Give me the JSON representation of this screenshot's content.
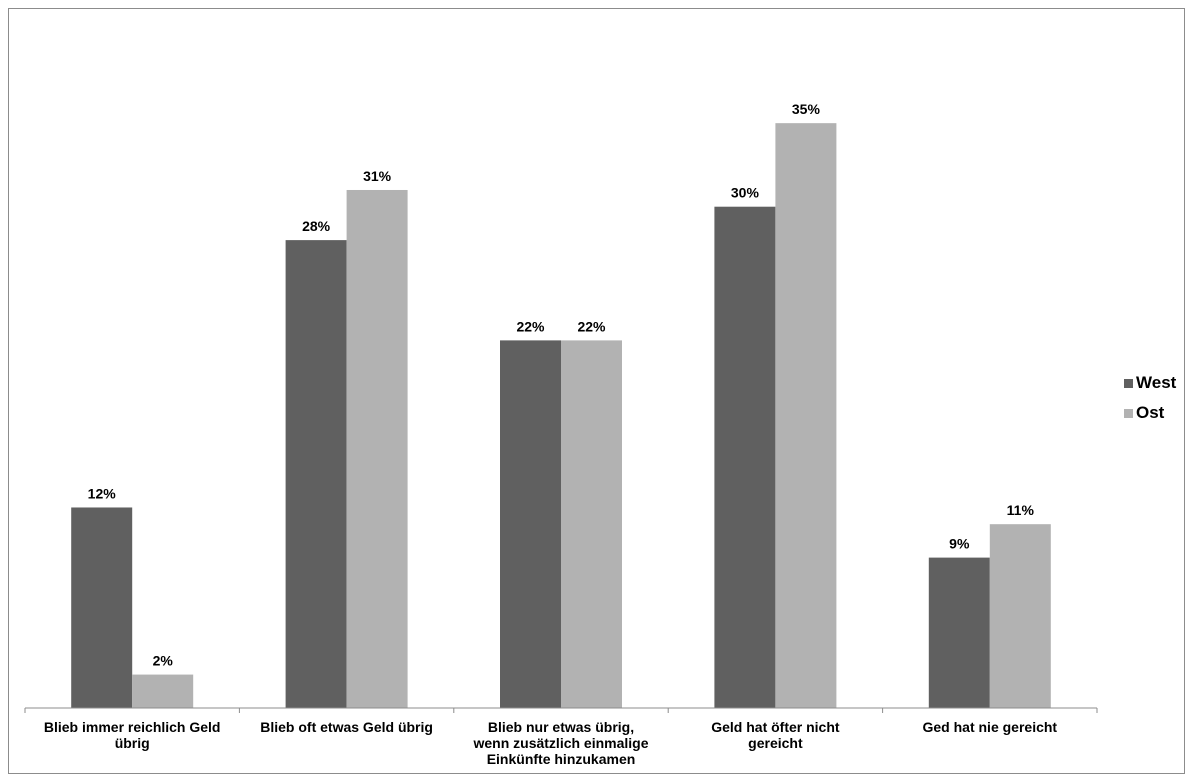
{
  "chart_data": {
    "type": "bar",
    "categories": [
      [
        "Blieb immer reichlich Geld",
        "übrig"
      ],
      [
        "Blieb oft etwas Geld übrig"
      ],
      [
        "Blieb nur etwas übrig,",
        "wenn zusätzlich einmalige",
        "Einkünfte hinzukamen"
      ],
      [
        "Geld hat öfter nicht",
        "gereicht"
      ],
      [
        "Ged hat nie gereicht"
      ]
    ],
    "series": [
      {
        "name": "West",
        "color": "#606060",
        "values": [
          12,
          28,
          22,
          30,
          9
        ],
        "labels": [
          "12%",
          "28%",
          "22%",
          "30%",
          "9%"
        ]
      },
      {
        "name": "Ost",
        "color": "#b2b2b2",
        "values": [
          2,
          31,
          22,
          35,
          11
        ],
        "labels": [
          "2%",
          "31%",
          "22%",
          "35%",
          "11%"
        ]
      }
    ],
    "ylim": [
      0,
      35
    ],
    "grid": false,
    "legend_position": "right"
  }
}
